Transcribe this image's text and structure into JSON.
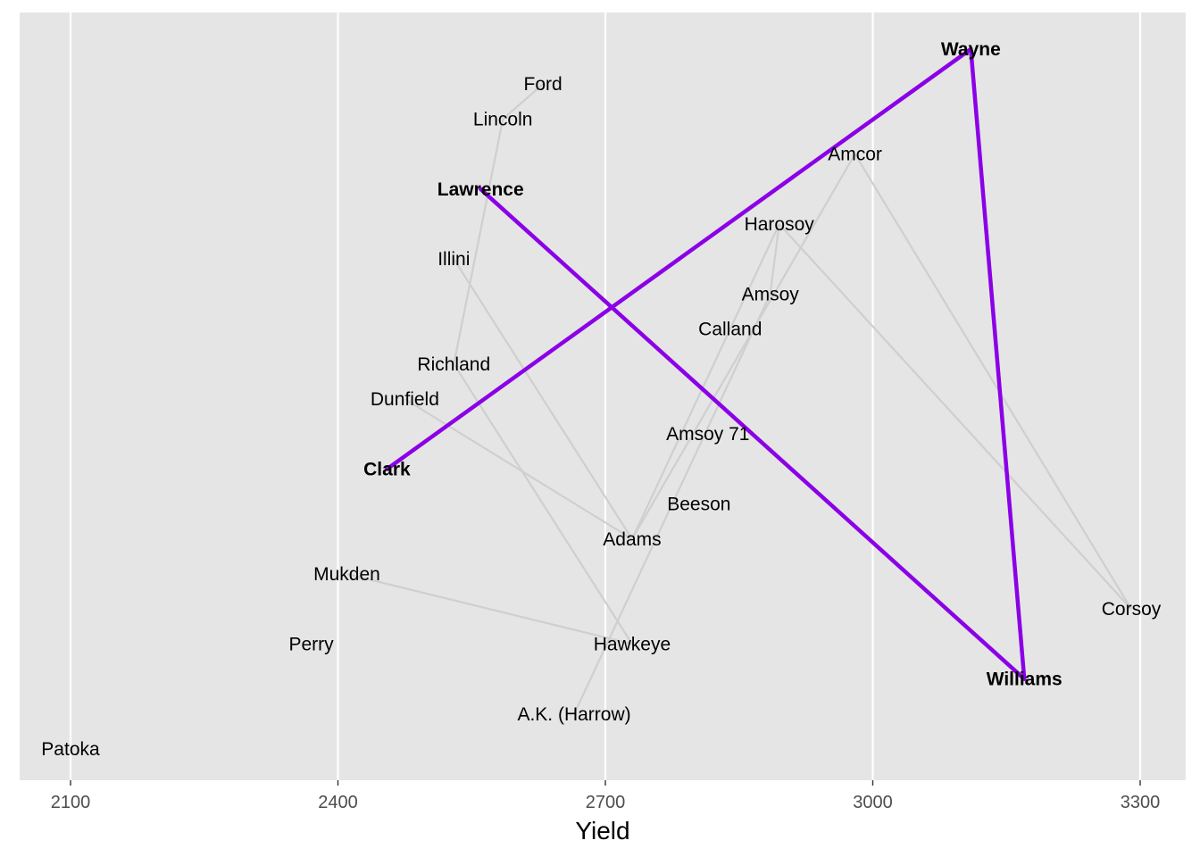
{
  "chart_data": {
    "type": "scatter",
    "title": "",
    "xlabel": "Yield",
    "ylabel": "",
    "xlim": [
      2055,
      3350
    ],
    "x_ticks": [
      {
        "value": 2100,
        "label": "2100"
      },
      {
        "value": 2400,
        "label": "2400"
      },
      {
        "value": 2700,
        "label": "2700"
      },
      {
        "value": 3000,
        "label": "3000"
      },
      {
        "value": 3300,
        "label": "3300"
      }
    ],
    "grid": "vertical major lines on grey panel",
    "y_axis": "none (labels stacked by rank)",
    "points": [
      {
        "label": "Wayne",
        "yield": 3110,
        "rank": 20,
        "highlight": true
      },
      {
        "label": "Ford",
        "yield": 2630,
        "rank": 19,
        "highlight": false
      },
      {
        "label": "Lincoln",
        "yield": 2585,
        "rank": 18,
        "highlight": false
      },
      {
        "label": "Amcor",
        "yield": 2980,
        "rank": 17,
        "highlight": false
      },
      {
        "label": "Lawrence",
        "yield": 2560,
        "rank": 16,
        "highlight": true
      },
      {
        "label": "Harosoy",
        "yield": 2895,
        "rank": 15,
        "highlight": false
      },
      {
        "label": "Illini",
        "yield": 2530,
        "rank": 14,
        "highlight": false
      },
      {
        "label": "Amsoy",
        "yield": 2885,
        "rank": 13,
        "highlight": false
      },
      {
        "label": "Calland",
        "yield": 2840,
        "rank": 12,
        "highlight": false
      },
      {
        "label": "Richland",
        "yield": 2530,
        "rank": 11,
        "highlight": false
      },
      {
        "label": "Dunfield",
        "yield": 2475,
        "rank": 10,
        "highlight": false
      },
      {
        "label": "Amsoy 71",
        "yield": 2815,
        "rank": 9,
        "highlight": false
      },
      {
        "label": "Clark",
        "yield": 2455,
        "rank": 8,
        "highlight": true
      },
      {
        "label": "Beeson",
        "yield": 2805,
        "rank": 7,
        "highlight": false
      },
      {
        "label": "Adams",
        "yield": 2730,
        "rank": 6,
        "highlight": false
      },
      {
        "label": "Mukden",
        "yield": 2410,
        "rank": 5,
        "highlight": false
      },
      {
        "label": "Corsoy",
        "yield": 3290,
        "rank": 4,
        "highlight": false
      },
      {
        "label": "Perry",
        "yield": 2370,
        "rank": 3,
        "highlight": false
      },
      {
        "label": "Hawkeye",
        "yield": 2730,
        "rank": 3,
        "highlight": false
      },
      {
        "label": "Williams",
        "yield": 3170,
        "rank": 2,
        "highlight": true
      },
      {
        "label": "A.K. (Harrow)",
        "yield": 2665,
        "rank": 1,
        "highlight": false
      },
      {
        "label": "Patoka",
        "yield": 2100,
        "rank": 0,
        "highlight": false
      }
    ],
    "grey_links": [
      [
        "Ford",
        "Lincoln"
      ],
      [
        "Lincoln",
        "Richland"
      ],
      [
        "Richland",
        "Hawkeye"
      ],
      [
        "Illini",
        "Adams"
      ],
      [
        "Dunfield",
        "Adams"
      ],
      [
        "Mukden",
        "Hawkeye"
      ],
      [
        "Adams",
        "Harosoy"
      ],
      [
        "Harosoy",
        "Amsoy"
      ],
      [
        "Amsoy",
        "A.K. (Harrow)"
      ],
      [
        "Adams",
        "Amcor"
      ],
      [
        "Amcor",
        "Corsoy"
      ],
      [
        "Harosoy",
        "Corsoy"
      ]
    ],
    "highlight_path": [
      "Clark",
      "Wayne",
      "Williams",
      "Lawrence"
    ],
    "colors": {
      "panel": "#e5e5e5",
      "grid": "#ffffff",
      "highlight_line": "#8b00e6",
      "grey_line": "#cfcfcf",
      "tick_text": "#4d4d4d"
    }
  }
}
